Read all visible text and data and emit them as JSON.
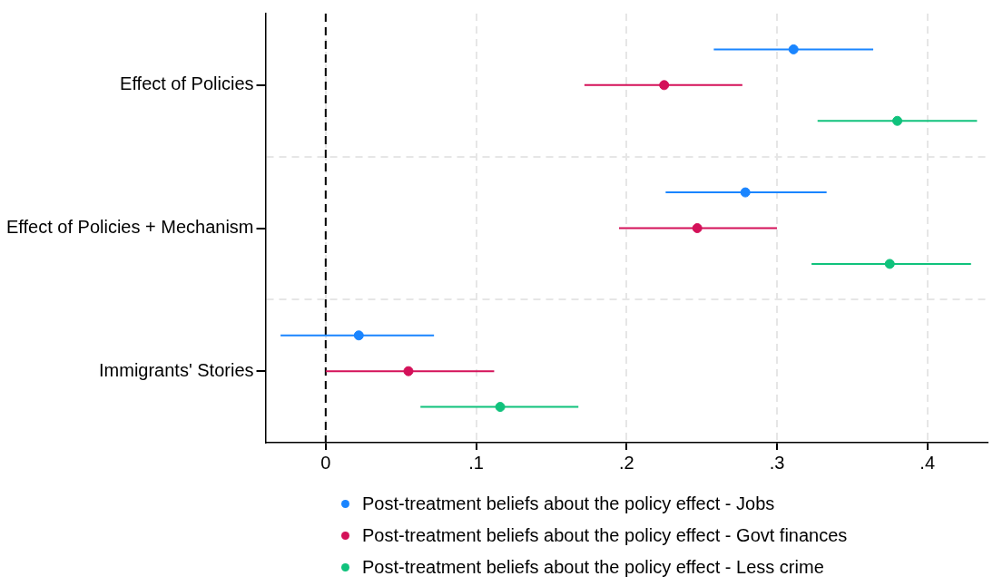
{
  "chart_data": {
    "type": "scatter",
    "orientation": "horizontal",
    "categories": [
      "Effect of Policies",
      "Effect of Policies + Mechanism",
      "Immigrants' Stories"
    ],
    "series": [
      {
        "name": "Post-treatment beliefs about the policy effect - Jobs",
        "color": "#1a85ff",
        "values": [
          0.311,
          0.279,
          0.022
        ],
        "errors": [
          [
            0.258,
            0.364
          ],
          [
            0.226,
            0.333
          ],
          [
            -0.03,
            0.072
          ]
        ]
      },
      {
        "name": "Post-treatment beliefs about the policy effect - Govt finances",
        "color": "#d41159",
        "values": [
          0.225,
          0.247,
          0.055
        ],
        "errors": [
          [
            0.172,
            0.277
          ],
          [
            0.195,
            0.3
          ],
          [
            0.0,
            0.112
          ]
        ]
      },
      {
        "name": "Post-treatment beliefs about the policy effect - Less crime",
        "color": "#10c27c",
        "values": [
          0.38,
          0.375,
          0.116
        ],
        "errors": [
          [
            0.327,
            0.433
          ],
          [
            0.323,
            0.429
          ],
          [
            0.063,
            0.168
          ]
        ]
      }
    ],
    "xlim": [
      -0.04,
      0.44
    ],
    "xticks": [
      0,
      {
        "value": 0.1,
        "label": ".1"
      },
      {
        "value": 0.2,
        "label": ".2"
      },
      {
        "value": 0.3,
        "label": ".3"
      },
      {
        "value": 0.4,
        "label": ".4"
      }
    ],
    "ref_lines": [
      {
        "axis": "x",
        "value": 0,
        "color": "#000000",
        "line_style": "dashed"
      }
    ],
    "grid": true,
    "legend": "bottom",
    "marker": "circle"
  }
}
